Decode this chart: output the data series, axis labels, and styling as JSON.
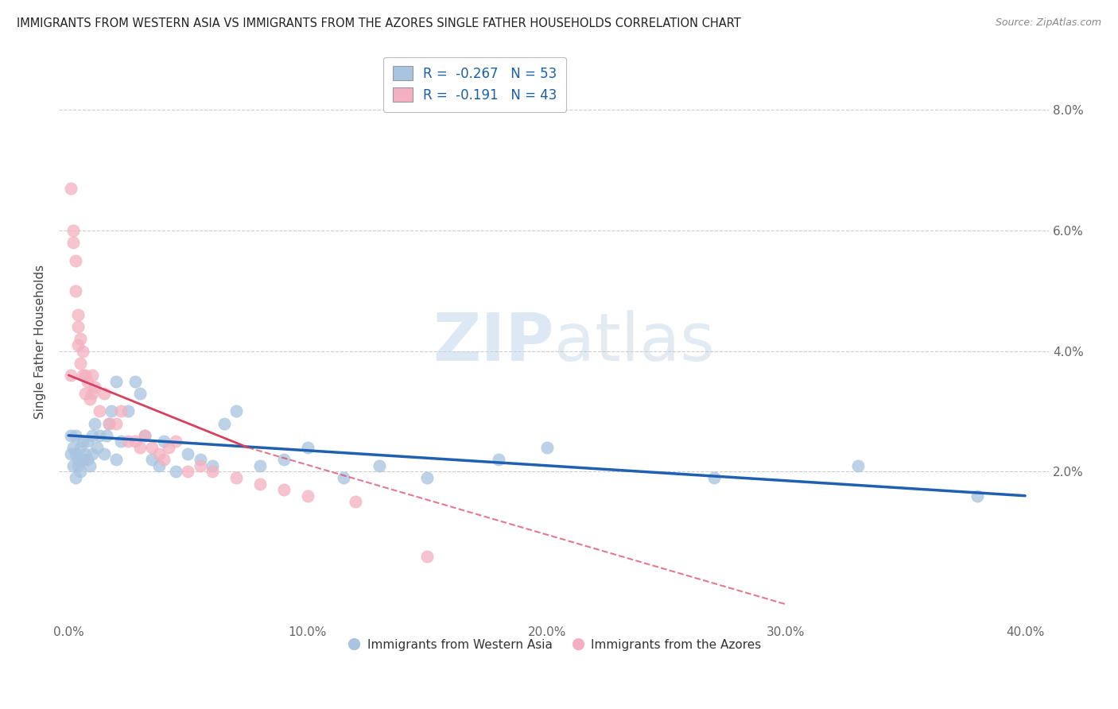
{
  "title": "IMMIGRANTS FROM WESTERN ASIA VS IMMIGRANTS FROM THE AZORES SINGLE FATHER HOUSEHOLDS CORRELATION CHART",
  "source": "Source: ZipAtlas.com",
  "ylabel": "Single Father Households",
  "x_tick_labels": [
    "0.0%",
    "10.0%",
    "20.0%",
    "30.0%",
    "40.0%"
  ],
  "x_tick_positions": [
    0.0,
    0.1,
    0.2,
    0.3,
    0.4
  ],
  "y_tick_labels": [
    "2.0%",
    "4.0%",
    "6.0%",
    "8.0%"
  ],
  "y_tick_positions": [
    0.02,
    0.04,
    0.06,
    0.08
  ],
  "xlim": [
    -0.004,
    0.41
  ],
  "ylim": [
    -0.005,
    0.088
  ],
  "legend_series": [
    "Immigrants from Western Asia",
    "Immigrants from the Azores"
  ],
  "watermark_zip": "ZIP",
  "watermark_atlas": "atlas",
  "blue_fill": "#a8c4e0",
  "pink_fill": "#f4b0c0",
  "blue_line_color": "#2060b0",
  "pink_line_color": "#d84060",
  "R_blue": -0.267,
  "N_blue": 53,
  "R_pink": -0.191,
  "N_pink": 43,
  "blue_line_x0": 0.0,
  "blue_line_y0": 0.026,
  "blue_line_x1": 0.4,
  "blue_line_y1": 0.016,
  "pink_line_x0": 0.0,
  "pink_line_y0": 0.036,
  "pink_line_x1_solid": 0.075,
  "pink_line_y1_solid": 0.024,
  "pink_line_x1_dash": 0.3,
  "pink_line_y1_dash": -0.002,
  "western_asia_x": [
    0.001,
    0.001,
    0.002,
    0.002,
    0.003,
    0.003,
    0.003,
    0.004,
    0.004,
    0.005,
    0.005,
    0.006,
    0.006,
    0.007,
    0.008,
    0.008,
    0.009,
    0.01,
    0.01,
    0.011,
    0.012,
    0.013,
    0.015,
    0.016,
    0.017,
    0.018,
    0.02,
    0.02,
    0.022,
    0.025,
    0.028,
    0.03,
    0.032,
    0.035,
    0.038,
    0.04,
    0.045,
    0.05,
    0.055,
    0.06,
    0.065,
    0.07,
    0.08,
    0.09,
    0.1,
    0.115,
    0.13,
    0.15,
    0.18,
    0.2,
    0.27,
    0.33,
    0.38
  ],
  "western_asia_y": [
    0.023,
    0.026,
    0.021,
    0.024,
    0.019,
    0.023,
    0.026,
    0.021,
    0.022,
    0.02,
    0.024,
    0.022,
    0.025,
    0.023,
    0.022,
    0.025,
    0.021,
    0.023,
    0.026,
    0.028,
    0.024,
    0.026,
    0.023,
    0.026,
    0.028,
    0.03,
    0.022,
    0.035,
    0.025,
    0.03,
    0.035,
    0.033,
    0.026,
    0.022,
    0.021,
    0.025,
    0.02,
    0.023,
    0.022,
    0.021,
    0.028,
    0.03,
    0.021,
    0.022,
    0.024,
    0.019,
    0.021,
    0.019,
    0.022,
    0.024,
    0.019,
    0.021,
    0.016
  ],
  "azores_x": [
    0.001,
    0.001,
    0.002,
    0.002,
    0.003,
    0.003,
    0.004,
    0.004,
    0.004,
    0.005,
    0.005,
    0.006,
    0.006,
    0.007,
    0.007,
    0.008,
    0.009,
    0.01,
    0.01,
    0.011,
    0.013,
    0.015,
    0.017,
    0.02,
    0.022,
    0.025,
    0.028,
    0.03,
    0.032,
    0.035,
    0.038,
    0.04,
    0.042,
    0.045,
    0.05,
    0.055,
    0.06,
    0.07,
    0.08,
    0.09,
    0.1,
    0.12,
    0.15
  ],
  "azores_y": [
    0.036,
    0.067,
    0.06,
    0.058,
    0.05,
    0.055,
    0.046,
    0.041,
    0.044,
    0.038,
    0.042,
    0.04,
    0.036,
    0.033,
    0.036,
    0.035,
    0.032,
    0.036,
    0.033,
    0.034,
    0.03,
    0.033,
    0.028,
    0.028,
    0.03,
    0.025,
    0.025,
    0.024,
    0.026,
    0.024,
    0.023,
    0.022,
    0.024,
    0.025,
    0.02,
    0.021,
    0.02,
    0.019,
    0.018,
    0.017,
    0.016,
    0.015,
    0.006
  ]
}
